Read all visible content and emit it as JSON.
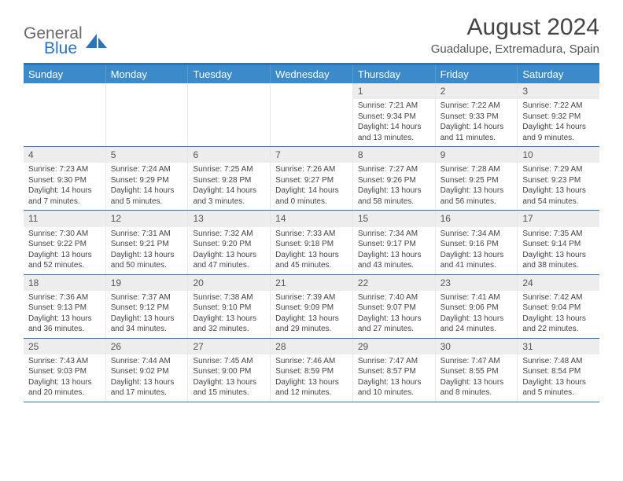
{
  "logo": {
    "text1": "General",
    "text2": "Blue",
    "text1_color": "#6a6a6a",
    "text2_color": "#2b74b8"
  },
  "title": "August 2024",
  "location": "Guadalupe, Extremadura, Spain",
  "colors": {
    "header_bar": "#3c8ac9",
    "accent": "#2b74b8",
    "daynum_bg": "#ededed",
    "cell_border": "#e8e8e8"
  },
  "weekdays": [
    "Sunday",
    "Monday",
    "Tuesday",
    "Wednesday",
    "Thursday",
    "Friday",
    "Saturday"
  ],
  "weeks": [
    [
      {
        "empty": true
      },
      {
        "empty": true
      },
      {
        "empty": true
      },
      {
        "empty": true
      },
      {
        "day": "1",
        "sunrise": "7:21 AM",
        "sunset": "9:34 PM",
        "daylight": "14 hours and 13 minutes."
      },
      {
        "day": "2",
        "sunrise": "7:22 AM",
        "sunset": "9:33 PM",
        "daylight": "14 hours and 11 minutes."
      },
      {
        "day": "3",
        "sunrise": "7:22 AM",
        "sunset": "9:32 PM",
        "daylight": "14 hours and 9 minutes."
      }
    ],
    [
      {
        "day": "4",
        "sunrise": "7:23 AM",
        "sunset": "9:30 PM",
        "daylight": "14 hours and 7 minutes."
      },
      {
        "day": "5",
        "sunrise": "7:24 AM",
        "sunset": "9:29 PM",
        "daylight": "14 hours and 5 minutes."
      },
      {
        "day": "6",
        "sunrise": "7:25 AM",
        "sunset": "9:28 PM",
        "daylight": "14 hours and 3 minutes."
      },
      {
        "day": "7",
        "sunrise": "7:26 AM",
        "sunset": "9:27 PM",
        "daylight": "14 hours and 0 minutes."
      },
      {
        "day": "8",
        "sunrise": "7:27 AM",
        "sunset": "9:26 PM",
        "daylight": "13 hours and 58 minutes."
      },
      {
        "day": "9",
        "sunrise": "7:28 AM",
        "sunset": "9:25 PM",
        "daylight": "13 hours and 56 minutes."
      },
      {
        "day": "10",
        "sunrise": "7:29 AM",
        "sunset": "9:23 PM",
        "daylight": "13 hours and 54 minutes."
      }
    ],
    [
      {
        "day": "11",
        "sunrise": "7:30 AM",
        "sunset": "9:22 PM",
        "daylight": "13 hours and 52 minutes."
      },
      {
        "day": "12",
        "sunrise": "7:31 AM",
        "sunset": "9:21 PM",
        "daylight": "13 hours and 50 minutes."
      },
      {
        "day": "13",
        "sunrise": "7:32 AM",
        "sunset": "9:20 PM",
        "daylight": "13 hours and 47 minutes."
      },
      {
        "day": "14",
        "sunrise": "7:33 AM",
        "sunset": "9:18 PM",
        "daylight": "13 hours and 45 minutes."
      },
      {
        "day": "15",
        "sunrise": "7:34 AM",
        "sunset": "9:17 PM",
        "daylight": "13 hours and 43 minutes."
      },
      {
        "day": "16",
        "sunrise": "7:34 AM",
        "sunset": "9:16 PM",
        "daylight": "13 hours and 41 minutes."
      },
      {
        "day": "17",
        "sunrise": "7:35 AM",
        "sunset": "9:14 PM",
        "daylight": "13 hours and 38 minutes."
      }
    ],
    [
      {
        "day": "18",
        "sunrise": "7:36 AM",
        "sunset": "9:13 PM",
        "daylight": "13 hours and 36 minutes."
      },
      {
        "day": "19",
        "sunrise": "7:37 AM",
        "sunset": "9:12 PM",
        "daylight": "13 hours and 34 minutes."
      },
      {
        "day": "20",
        "sunrise": "7:38 AM",
        "sunset": "9:10 PM",
        "daylight": "13 hours and 32 minutes."
      },
      {
        "day": "21",
        "sunrise": "7:39 AM",
        "sunset": "9:09 PM",
        "daylight": "13 hours and 29 minutes."
      },
      {
        "day": "22",
        "sunrise": "7:40 AM",
        "sunset": "9:07 PM",
        "daylight": "13 hours and 27 minutes."
      },
      {
        "day": "23",
        "sunrise": "7:41 AM",
        "sunset": "9:06 PM",
        "daylight": "13 hours and 24 minutes."
      },
      {
        "day": "24",
        "sunrise": "7:42 AM",
        "sunset": "9:04 PM",
        "daylight": "13 hours and 22 minutes."
      }
    ],
    [
      {
        "day": "25",
        "sunrise": "7:43 AM",
        "sunset": "9:03 PM",
        "daylight": "13 hours and 20 minutes."
      },
      {
        "day": "26",
        "sunrise": "7:44 AM",
        "sunset": "9:02 PM",
        "daylight": "13 hours and 17 minutes."
      },
      {
        "day": "27",
        "sunrise": "7:45 AM",
        "sunset": "9:00 PM",
        "daylight": "13 hours and 15 minutes."
      },
      {
        "day": "28",
        "sunrise": "7:46 AM",
        "sunset": "8:59 PM",
        "daylight": "13 hours and 12 minutes."
      },
      {
        "day": "29",
        "sunrise": "7:47 AM",
        "sunset": "8:57 PM",
        "daylight": "13 hours and 10 minutes."
      },
      {
        "day": "30",
        "sunrise": "7:47 AM",
        "sunset": "8:55 PM",
        "daylight": "13 hours and 8 minutes."
      },
      {
        "day": "31",
        "sunrise": "7:48 AM",
        "sunset": "8:54 PM",
        "daylight": "13 hours and 5 minutes."
      }
    ]
  ],
  "labels": {
    "sunrise": "Sunrise:",
    "sunset": "Sunset:",
    "daylight": "Daylight:"
  }
}
